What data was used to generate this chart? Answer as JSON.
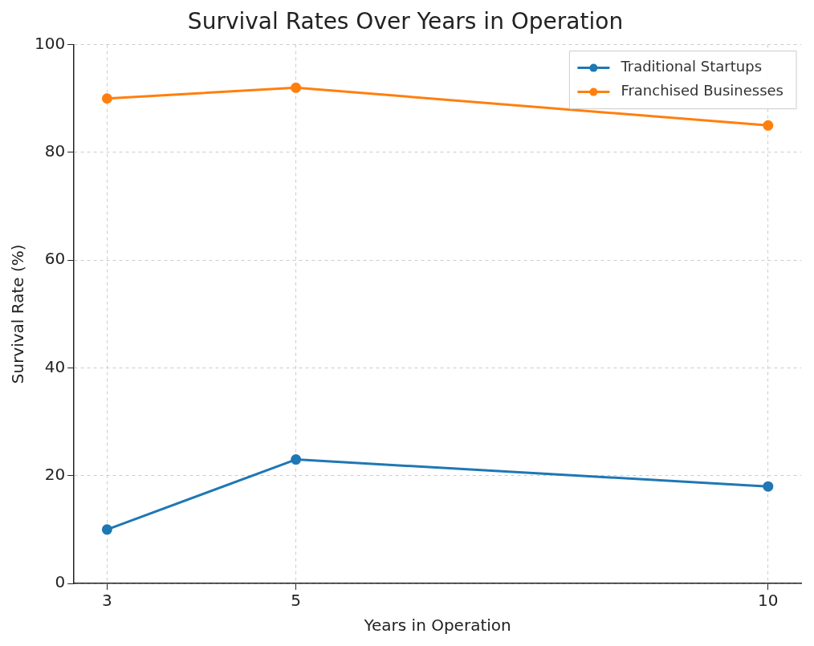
{
  "chart_data": {
    "type": "line",
    "title": "Survival Rates Over Years in Operation",
    "xlabel": "Years in Operation",
    "ylabel": "Survival Rate (%)",
    "x": [
      3,
      5,
      10
    ],
    "series": [
      {
        "name": "Traditional Startups",
        "color": "#1f77b4",
        "values": [
          10,
          23,
          18
        ]
      },
      {
        "name": "Franchised Businesses",
        "color": "#ff7f0e",
        "values": [
          90,
          92,
          85
        ]
      }
    ],
    "xlim": [
      2.65,
      10.35
    ],
    "xticks": [
      3,
      5,
      10
    ],
    "ylim": [
      0,
      100
    ],
    "yticks": [
      0,
      20,
      40,
      60,
      80,
      100
    ],
    "grid": true,
    "legend": "top right",
    "marker": "circle",
    "line_style": "solid"
  }
}
